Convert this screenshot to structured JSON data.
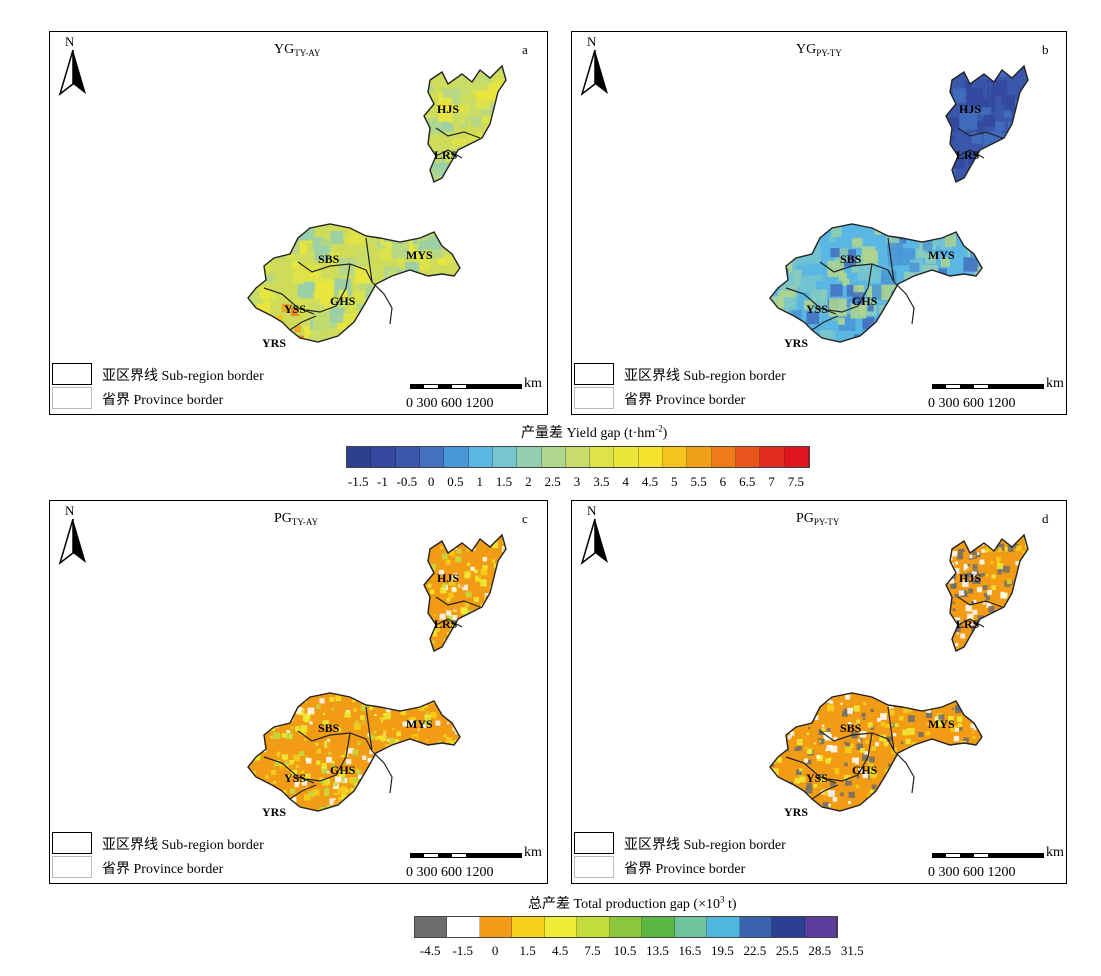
{
  "panels": [
    {
      "id": "a",
      "title_main": "YG",
      "title_sub": "TY-AY",
      "letter": "a",
      "mode": "yield_low"
    },
    {
      "id": "b",
      "title_main": "YG",
      "title_sub": "PY-TY",
      "letter": "b",
      "mode": "yield_high"
    },
    {
      "id": "c",
      "title_main": "PG",
      "title_sub": "TY-AY",
      "letter": "c",
      "mode": "prod"
    },
    {
      "id": "d",
      "title_main": "PG",
      "title_sub": "PY-TY",
      "letter": "d",
      "mode": "prod2"
    }
  ],
  "north_label": "N",
  "subregions": [
    "HJS",
    "LRS",
    "SBS",
    "MYS",
    "YSS",
    "GHS",
    "YRS"
  ],
  "legend": {
    "subregion_border": "亚区界线 Sub-region border",
    "province_border": "省界 Province border"
  },
  "scale": {
    "km_label": "km",
    "ticks": "0   300 600        1200"
  },
  "colorbar_yield": {
    "title": "产量差 Yield gap (t·hm",
    "title_sup": "-2",
    "title_end": ")",
    "ticks": [
      "-1.5",
      "-1",
      "-0.5",
      "0",
      "0.5",
      "1",
      "1.5",
      "2",
      "2.5",
      "3",
      "3.5",
      "4",
      "4.5",
      "5",
      "5.5",
      "6",
      "6.5",
      "7",
      "7.5"
    ],
    "colors": [
      "#2d3f8e",
      "#34489e",
      "#3b57ab",
      "#4370bf",
      "#4a97d6",
      "#5ab6e2",
      "#77c6cf",
      "#94cfb0",
      "#b1d68d",
      "#c7dc6a",
      "#dde348",
      "#ece63a",
      "#f5e22c",
      "#f4c31c",
      "#f09f18",
      "#ec7b18",
      "#e8551d",
      "#e32b22",
      "#e0161f"
    ]
  },
  "colorbar_prod": {
    "title": "总产差 Total production gap (×10",
    "title_sup": "3",
    "title_end": " t)",
    "ticks": [
      "-4.5",
      "-1.5",
      "0",
      "1.5",
      "4.5",
      "7.5",
      "10.5",
      "13.5",
      "16.5",
      "19.5",
      "22.5",
      "25.5",
      "28.5",
      "31.5"
    ],
    "colors": [
      "#6d6d6d",
      "#ffffff",
      "#f29b14",
      "#f4d118",
      "#eded35",
      "#c2dc3e",
      "#8bc63f",
      "#5ab845",
      "#6fc39e",
      "#4fb7e0",
      "#3b63ad",
      "#2b3f93",
      "#5e3c99"
    ]
  }
}
